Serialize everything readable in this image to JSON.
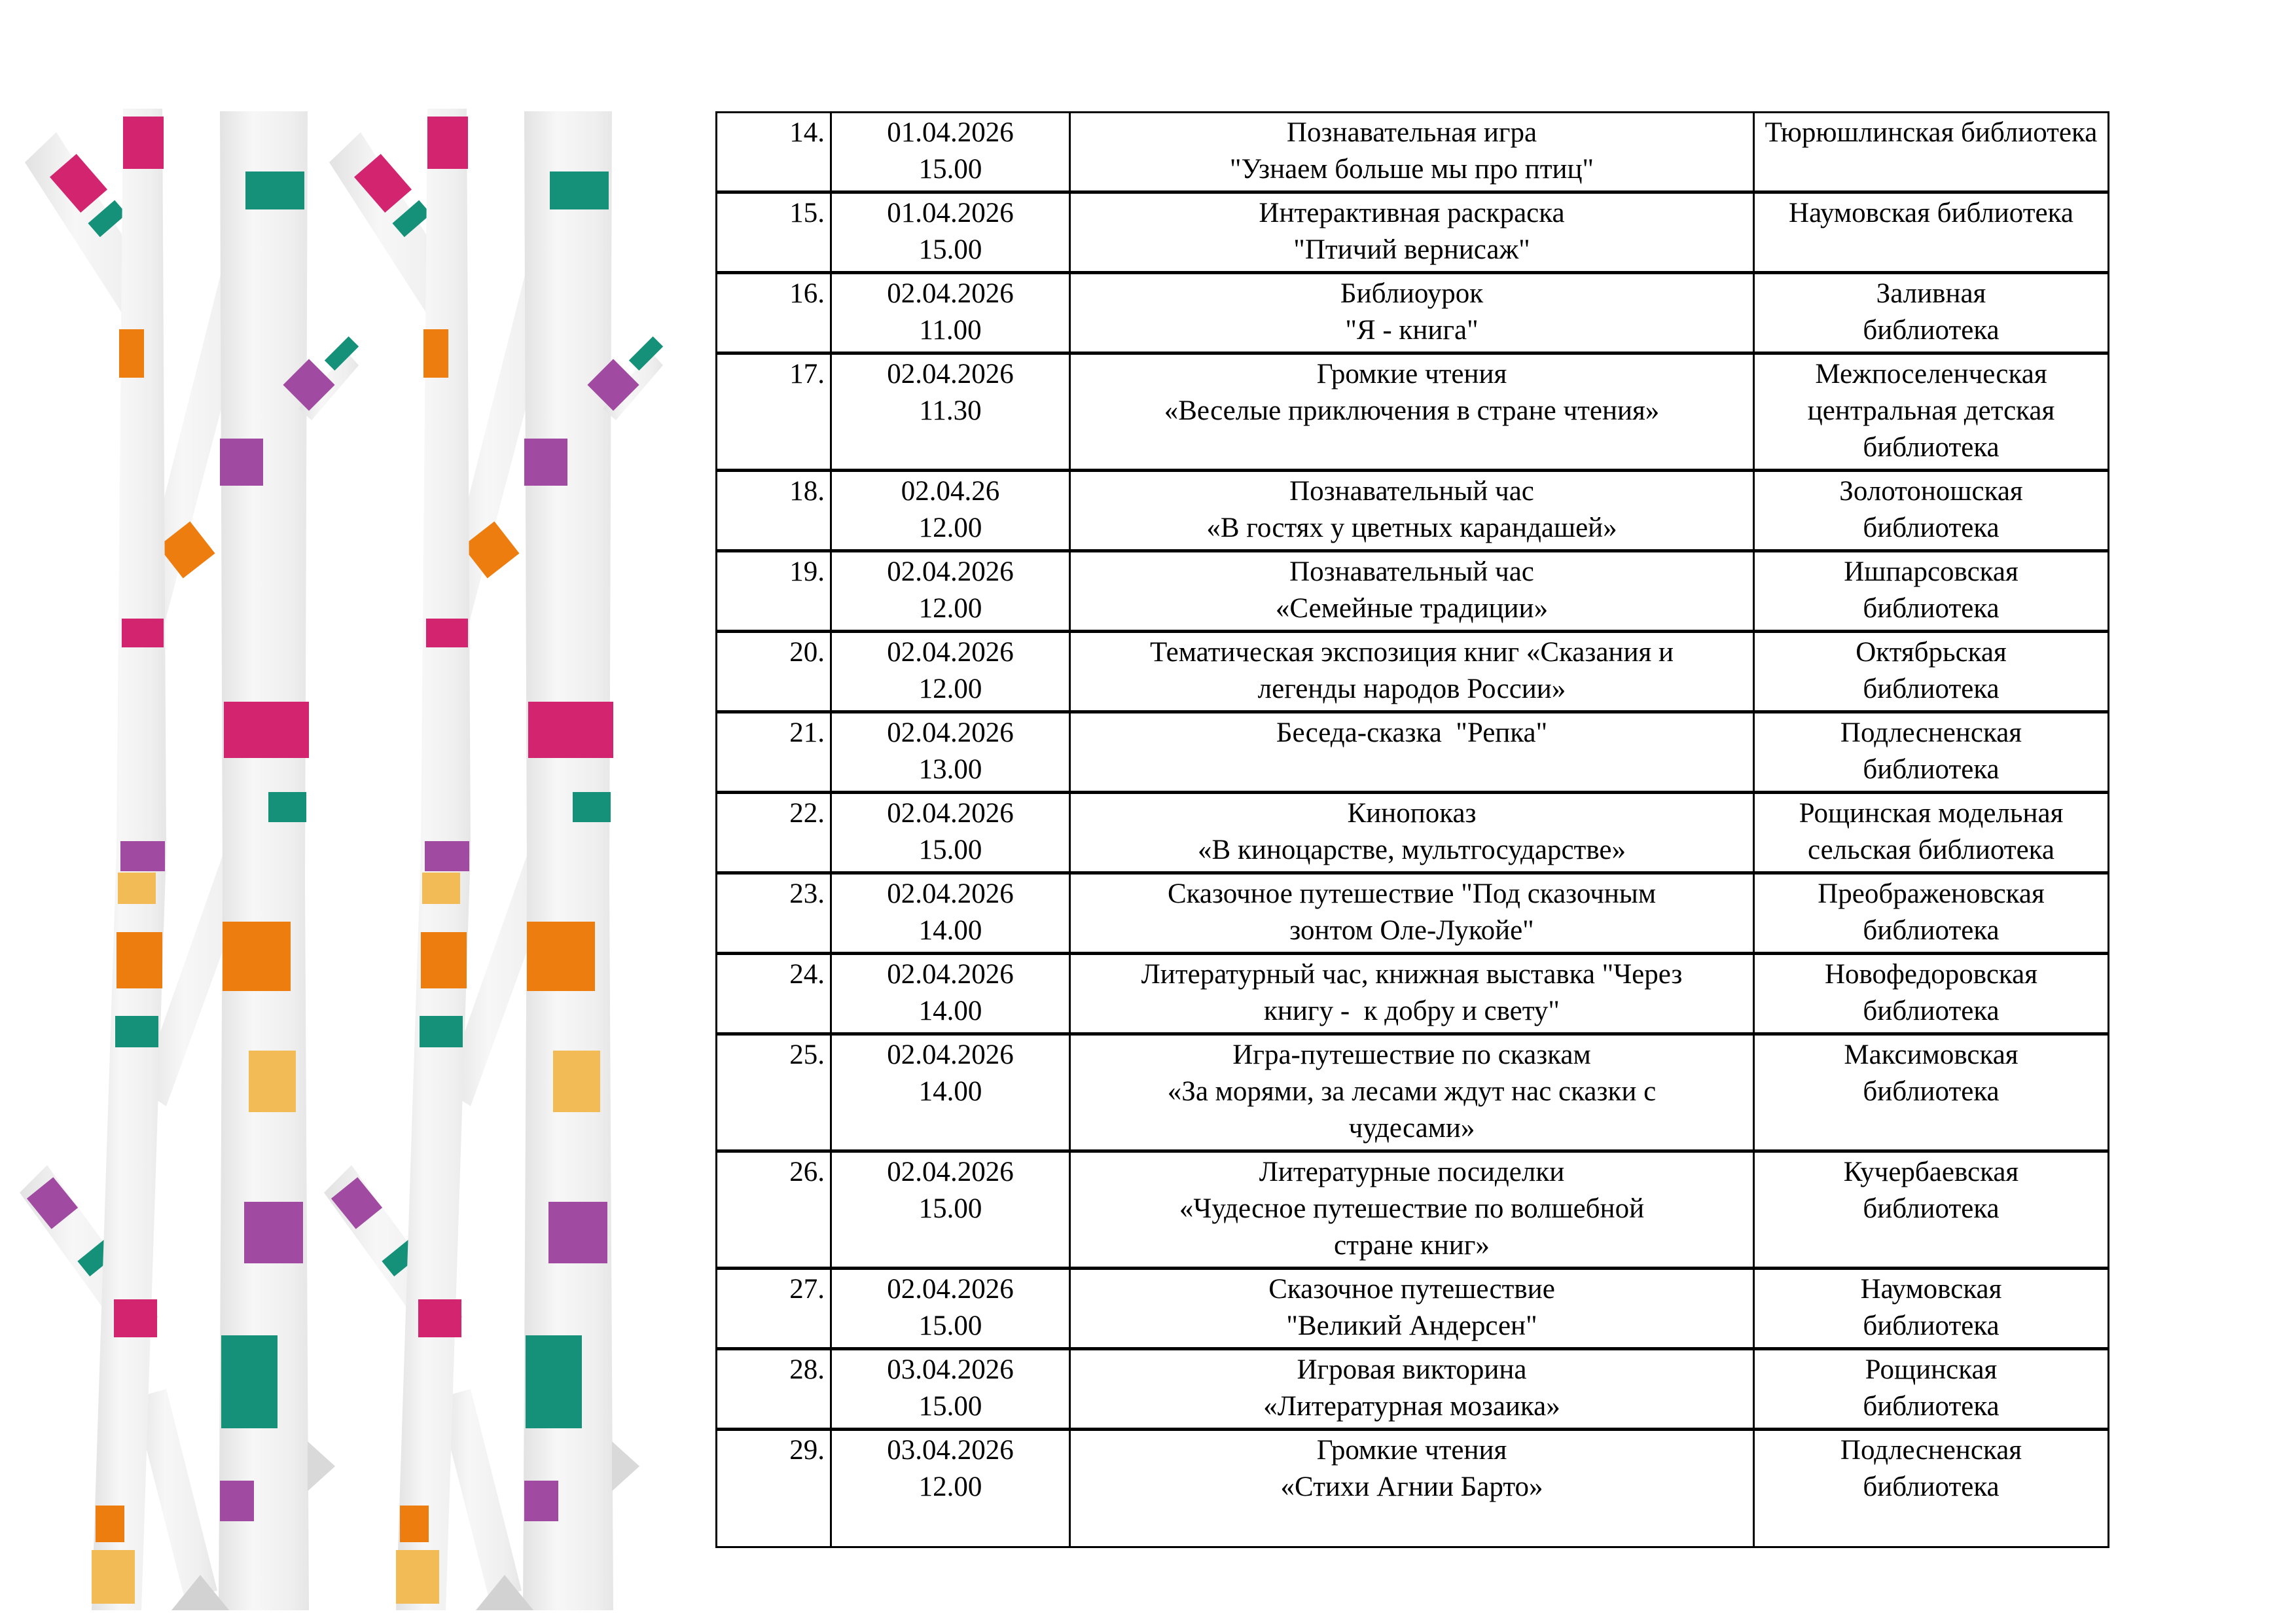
{
  "page": {
    "background": "#ffffff",
    "description": "Schedule of library events, items 14-29"
  },
  "decor": {
    "illustration": "birch-trees-with-confetti",
    "colors": {
      "magenta": "#d2246f",
      "teal": "#159179",
      "orange": "#ee7d10",
      "purple": "#a14aa1",
      "gold": "#f2bb55",
      "trunk-light": "#f7f7f7",
      "trunk-shade": "#e2e2e2"
    }
  },
  "table": {
    "border_color": "#000000",
    "columns": [
      "number",
      "date-time",
      "event",
      "library"
    ],
    "rows": [
      {
        "num": "14.",
        "date": "01.04.2026",
        "time": "15.00",
        "event": [
          "Познавательная игра",
          "\"Узнаем больше мы про птиц\""
        ],
        "library": [
          "Тюрюшлинская библиотека"
        ]
      },
      {
        "num": "15.",
        "date": "01.04.2026",
        "time": "15.00",
        "event": [
          "Интерактивная раскраска",
          "\"Птичий вернисаж\""
        ],
        "library": [
          "Наумовская библиотека"
        ]
      },
      {
        "num": "16.",
        "date": "02.04.2026",
        "time": "11.00",
        "event": [
          "Библиоурок",
          "\"Я - книга\""
        ],
        "library": [
          "Заливная",
          "библиотека"
        ]
      },
      {
        "num": "17.",
        "date": "02.04.2026",
        "time": "11.30",
        "event": [
          "Громкие чтения",
          "«Веселые приключения в стране чтения»"
        ],
        "library": [
          "Межпоселенческая",
          "центральная детская",
          "библиотека"
        ]
      },
      {
        "num": "18.",
        "date": "02.04.26",
        "time": "12.00",
        "event": [
          "Познавательный час",
          "«В гостях у цветных карандашей»"
        ],
        "library": [
          "Золотоношская",
          "библиотека"
        ]
      },
      {
        "num": "19.",
        "date": "02.04.2026",
        "time": "12.00",
        "event": [
          "Познавательный час",
          "«Семейные традиции»"
        ],
        "library": [
          "Ишпарсовская",
          "библиотека"
        ]
      },
      {
        "num": "20.",
        "date": "02.04.2026",
        "time": "12.00",
        "event": [
          "Тематическая экспозиция книг «Сказания и",
          "легенды народов России»"
        ],
        "library": [
          "Октябрьская",
          "библиотека"
        ]
      },
      {
        "num": "21.",
        "date": "02.04.2026",
        "time": "13.00",
        "event": [
          "Беседа-сказка  \"Репка\""
        ],
        "library": [
          "Подлесненская",
          "библиотека"
        ]
      },
      {
        "num": "22.",
        "date": "02.04.2026",
        "time": "15.00",
        "event": [
          "Кинопоказ",
          "«В киноцарстве, мультгосударстве»"
        ],
        "library": [
          "Рощинская модельная",
          "сельская библиотека"
        ]
      },
      {
        "num": "23.",
        "date": "02.04.2026",
        "time": "14.00",
        "event": [
          "Сказочное путешествие \"Под сказочным",
          "зонтом Оле-Лукойе\""
        ],
        "library": [
          "Преображеновская",
          "библиотека"
        ]
      },
      {
        "num": "24.",
        "date": "02.04.2026",
        "time": "14.00",
        "event": [
          "Литературный час, книжная выставка \"Через",
          "книгу -  к добру и свету\""
        ],
        "library": [
          "Новофедоровская",
          "библиотека"
        ]
      },
      {
        "num": "25.",
        "date": "02.04.2026",
        "time": "14.00",
        "event": [
          "Игра-путешествие по сказкам",
          "«За морями, за лесами ждут нас сказки с",
          "чудесами»"
        ],
        "library": [
          "Максимовская",
          "библиотека"
        ]
      },
      {
        "num": "26.",
        "date": "02.04.2026",
        "time": "15.00",
        "event": [
          "Литературные посиделки",
          "«Чудесное путешествие по волшебной",
          "стране книг»"
        ],
        "library": [
          "Кучербаевская",
          "библиотека"
        ]
      },
      {
        "num": "27.",
        "date": "02.04.2026",
        "time": "15.00",
        "event": [
          "Сказочное путешествие",
          "\"Великий Андерсен\""
        ],
        "library": [
          "Наумовская",
          "библиотека"
        ]
      },
      {
        "num": "28.",
        "date": "03.04.2026",
        "time": "15.00",
        "event": [
          "Игровая викторина",
          "«Литературная мозаика»"
        ],
        "library": [
          "Рощинская",
          "библиотека"
        ]
      },
      {
        "num": "29.",
        "date": "03.04.2026",
        "time": "12.00",
        "event": [
          "Громкие чтения",
          "«Стихи Агнии Барто»"
        ],
        "library": [
          "Подлесненская",
          "библиотека"
        ]
      }
    ]
  }
}
